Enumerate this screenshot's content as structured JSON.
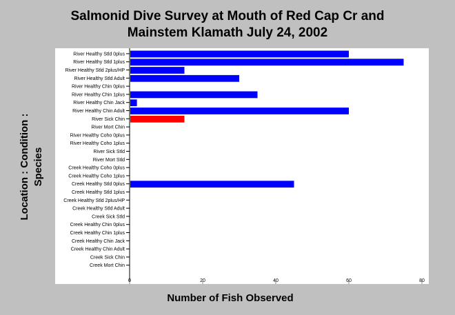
{
  "chart_data": {
    "type": "bar",
    "orientation": "horizontal",
    "title": [
      "Salmonid Dive Survey at Mouth of Red Cap Cr and",
      "Mainstem Klamath July 24, 2002"
    ],
    "xlabel": "Number of Fish Observed",
    "ylabel": [
      "Location : Condition :",
      "Species"
    ],
    "xlim": [
      0,
      80
    ],
    "xticks": [
      0,
      20,
      40,
      60,
      80
    ],
    "grid": false,
    "colors": {
      "bar": "#0000ff",
      "highlight": "#ff0000",
      "plot_bg": "#ffffff",
      "page_bg": "#c0c0c0"
    },
    "categories": [
      "River Healthy Stld 0plus",
      "River Healthy Stld 1plus",
      "River Healthy Stld 2plus/HP",
      "River Healthy Stld Adult",
      "River Healthy Chin 0plus",
      "River Healthy Chin 1plus",
      "River Healthy Chin Jack",
      "River Healthy Chin Adult",
      "River Sick Chin",
      "River Mort Chin",
      "River Healthy Coho 0plus",
      "River Healthy Coho 1plus",
      "River Sick Stld",
      "River Mort Stld",
      "Creek Healthy Coho 0plus",
      "Creek Healthy Coho 1plus",
      "Creek Healthy Stld 0plus",
      "Creek Healthy Stld 1plus",
      "Creek Healthy Stld 2plus/HP",
      "Creek Healthy Stld Adult",
      "Creek Sick Stld",
      "Creek Healthy Chin 0plus",
      "Creek Healthy Chin 1plus",
      "Creek Healthy Chin Jack",
      "Creek Healthy Chin Adult",
      "Creek Sick Chin",
      "Creek Mort Chin"
    ],
    "values": [
      60,
      75,
      15,
      30,
      0,
      35,
      2,
      60,
      15,
      0,
      0,
      0,
      0,
      0,
      0,
      0,
      45,
      0,
      0,
      0,
      0,
      0,
      0,
      0,
      0,
      0,
      0
    ],
    "highlight_categories": [
      "River Sick Chin"
    ]
  }
}
